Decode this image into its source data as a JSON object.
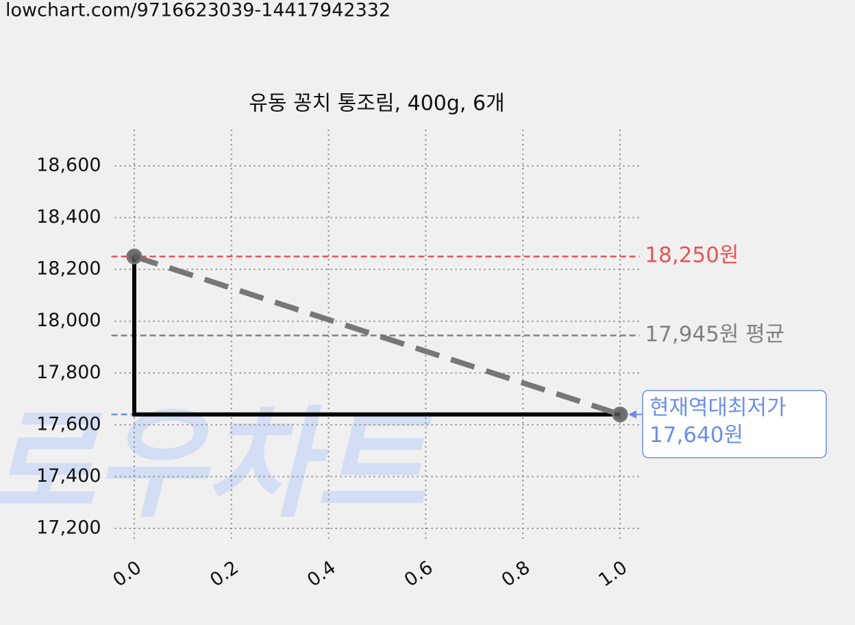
{
  "url": "lowchart.com/9716623039-14417942332",
  "watermark": "로우차트",
  "chart_data": {
    "type": "line",
    "title": "유동 꽁치 통조림, 400g, 6개",
    "x": [
      0,
      1
    ],
    "series": [
      {
        "color": "#777777",
        "values": [
          18250,
          17640
        ]
      }
    ],
    "step_color": "#000000",
    "xlim": [
      -0.04,
      1.04
    ],
    "xticks": [
      {
        "value": 0,
        "label": "0.0"
      },
      0.2,
      0.4,
      0.6,
      0.8,
      {
        "value": 1,
        "label": "1.0"
      }
    ],
    "ylim": [
      17160,
      18740
    ],
    "yticks": [
      {
        "value": 17200,
        "label": "17,200"
      },
      {
        "value": 17400,
        "label": "17,400"
      },
      {
        "value": 17600,
        "label": "17,600"
      },
      {
        "value": 17800,
        "label": "17,800"
      },
      {
        "value": 18000,
        "label": "18,000"
      },
      {
        "value": 18200,
        "label": "18,200"
      },
      {
        "value": 18400,
        "label": "18,400"
      },
      {
        "value": 18600,
        "label": "18,600"
      }
    ],
    "grid": true,
    "reference_lines": [
      {
        "value": 18250,
        "label": "18,250원",
        "color": "#e85555"
      },
      {
        "value": 17945,
        "label": "17,945원 평균",
        "color": "#808080"
      }
    ],
    "current": {
      "value": 17640,
      "label_lines": [
        "현재역대최저가",
        "17,640원"
      ],
      "color": "#6b8fe8"
    }
  }
}
